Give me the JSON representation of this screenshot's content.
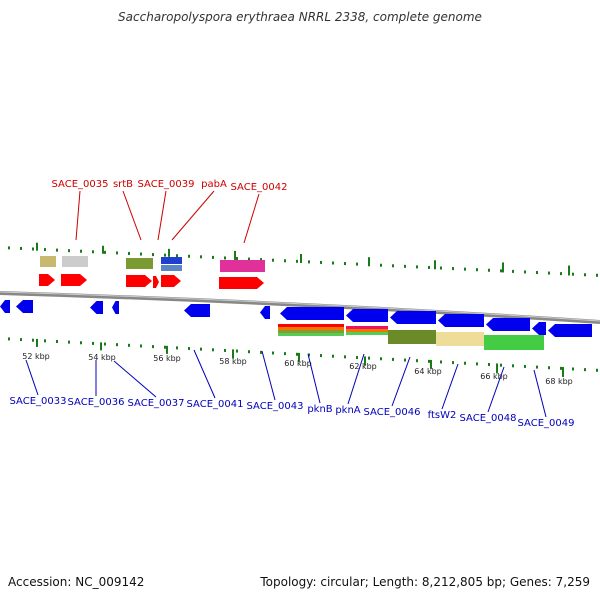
{
  "title": "Saccharopolyspora erythraea NRRL 2338, complete genome",
  "footer": {
    "accession": "Accession: NC_009142",
    "summary": "Topology: circular; Length: 8,212,805 bp; Genes: 7,259"
  },
  "colors": {
    "forward_label": "#cc0000",
    "reverse_label": "#0000bb",
    "forward_gene": "#ff0000",
    "reverse_gene": "#0000ee",
    "backbone": "#888888",
    "tick": "#1a7a1a"
  },
  "scale_labels": [
    "52 kbp",
    "54 kbp",
    "56 kbp",
    "58 kbp",
    "60 kbp",
    "62 kbp",
    "64 kbp",
    "66 kbp",
    "68 kbp"
  ],
  "forward_labels": [
    "SACE_0035",
    "srtB",
    "SACE_0039",
    "pabA",
    "SACE_0042"
  ],
  "reverse_labels": [
    "SACE_0033",
    "SACE_0036",
    "SACE_0037",
    "SACE_0041",
    "SACE_0043",
    "pknB",
    "pknA",
    "SACE_0046",
    "ftsW2",
    "SACE_0048",
    "SACE_0049"
  ]
}
